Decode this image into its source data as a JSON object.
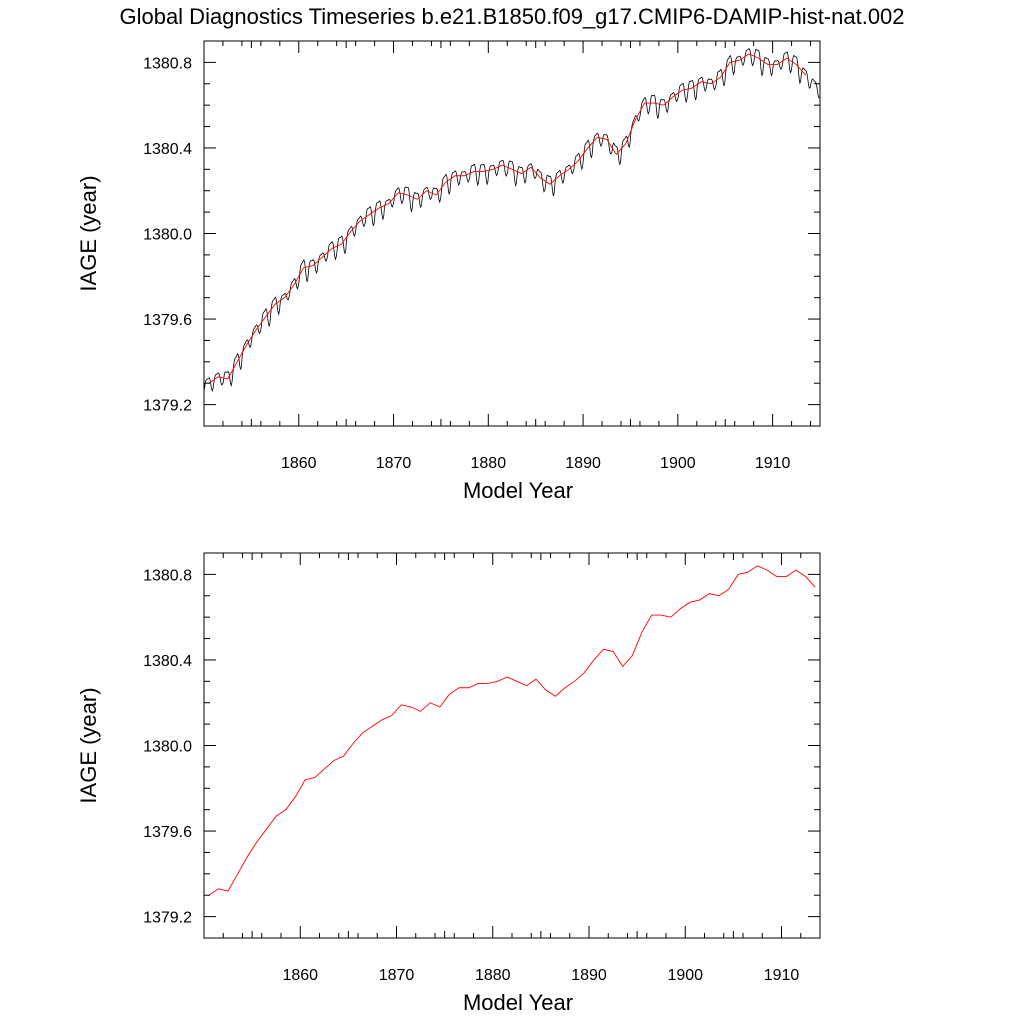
{
  "title": "Global Diagnostics Timeseries b.e21.B1850.f09_g17.CMIP6-DAMIP-hist-nat.002",
  "chart_data": [
    {
      "type": "line",
      "xlabel": "Model Year",
      "ylabel": "IAGE (year)",
      "xlim": [
        1850,
        1915
      ],
      "ylim": [
        1379.1,
        1380.9
      ],
      "xticks": [
        1860,
        1870,
        1880,
        1890,
        1900,
        1910
      ],
      "xtick_labels": [
        "1860",
        "1870",
        "1880",
        "1890",
        "1900",
        "1910"
      ],
      "yticks": [
        1379.2,
        1379.6,
        1380.0,
        1380.4,
        1380.8
      ],
      "ytick_labels": [
        "1379.2",
        "1379.6",
        "1380.0",
        "1380.4",
        "1380.8"
      ],
      "grid": false,
      "series": [
        {
          "color": "#000000",
          "kind": "monthly",
          "seasonal_amplitude": 0.045,
          "annual_anchor": "annual"
        },
        {
          "color": "#ff0000",
          "kind": "annual",
          "x": [
            1850.5,
            1851.5,
            1852.5,
            1853.5,
            1854.5,
            1855.5,
            1856.5,
            1857.5,
            1858.5,
            1859.5,
            1860.5,
            1861.5,
            1862.5,
            1863.5,
            1864.5,
            1865.5,
            1866.5,
            1867.5,
            1868.5,
            1869.5,
            1870.5,
            1871.5,
            1872.5,
            1873.5,
            1874.5,
            1875.5,
            1876.5,
            1877.5,
            1878.5,
            1879.5,
            1880.5,
            1881.5,
            1882.5,
            1883.5,
            1884.5,
            1885.5,
            1886.5,
            1887.5,
            1888.5,
            1889.5,
            1890.5,
            1891.5,
            1892.5,
            1893.5,
            1894.5,
            1895.5,
            1896.5,
            1897.5,
            1898.5,
            1899.5,
            1900.5,
            1901.5,
            1902.5,
            1903.5,
            1904.5,
            1905.5,
            1906.5,
            1907.5,
            1908.5,
            1909.5,
            1910.5,
            1911.5,
            1912.5,
            1913.5
          ],
          "values": [
            1379.3,
            1379.33,
            1379.32,
            1379.4,
            1379.48,
            1379.55,
            1379.61,
            1379.67,
            1379.7,
            1379.76,
            1379.84,
            1379.85,
            1379.89,
            1379.93,
            1379.95,
            1380.01,
            1380.06,
            1380.09,
            1380.12,
            1380.14,
            1380.19,
            1380.18,
            1380.16,
            1380.2,
            1380.18,
            1380.24,
            1380.27,
            1380.27,
            1380.29,
            1380.29,
            1380.3,
            1380.32,
            1380.3,
            1380.28,
            1380.31,
            1380.26,
            1380.23,
            1380.27,
            1380.3,
            1380.34,
            1380.4,
            1380.45,
            1380.44,
            1380.37,
            1380.42,
            1380.53,
            1380.61,
            1380.61,
            1380.6,
            1380.64,
            1380.67,
            1380.68,
            1380.71,
            1380.7,
            1380.73,
            1380.8,
            1380.81,
            1380.84,
            1380.82,
            1380.79,
            1380.79,
            1380.82,
            1380.79,
            1380.74
          ]
        }
      ]
    },
    {
      "type": "line",
      "xlabel": "Model Year",
      "ylabel": "IAGE (year)",
      "xlim": [
        1850,
        1914
      ],
      "ylim": [
        1379.1,
        1380.9
      ],
      "xticks": [
        1860,
        1870,
        1880,
        1890,
        1900,
        1910
      ],
      "xtick_labels": [
        "1860",
        "1870",
        "1880",
        "1890",
        "1900",
        "1910"
      ],
      "yticks": [
        1379.2,
        1379.6,
        1380.0,
        1380.4,
        1380.8
      ],
      "ytick_labels": [
        "1379.2",
        "1379.6",
        "1380.0",
        "1380.4",
        "1380.8"
      ],
      "grid": false,
      "series": [
        {
          "color": "#ff0000",
          "kind": "annual",
          "x": [
            1850.5,
            1851.5,
            1852.5,
            1853.5,
            1854.5,
            1855.5,
            1856.5,
            1857.5,
            1858.5,
            1859.5,
            1860.5,
            1861.5,
            1862.5,
            1863.5,
            1864.5,
            1865.5,
            1866.5,
            1867.5,
            1868.5,
            1869.5,
            1870.5,
            1871.5,
            1872.5,
            1873.5,
            1874.5,
            1875.5,
            1876.5,
            1877.5,
            1878.5,
            1879.5,
            1880.5,
            1881.5,
            1882.5,
            1883.5,
            1884.5,
            1885.5,
            1886.5,
            1887.5,
            1888.5,
            1889.5,
            1890.5,
            1891.5,
            1892.5,
            1893.5,
            1894.5,
            1895.5,
            1896.5,
            1897.5,
            1898.5,
            1899.5,
            1900.5,
            1901.5,
            1902.5,
            1903.5,
            1904.5,
            1905.5,
            1906.5,
            1907.5,
            1908.5,
            1909.5,
            1910.5,
            1911.5,
            1912.5,
            1913.5
          ],
          "values": [
            1379.3,
            1379.33,
            1379.32,
            1379.4,
            1379.48,
            1379.55,
            1379.61,
            1379.67,
            1379.7,
            1379.76,
            1379.84,
            1379.85,
            1379.89,
            1379.93,
            1379.95,
            1380.01,
            1380.06,
            1380.09,
            1380.12,
            1380.14,
            1380.19,
            1380.18,
            1380.16,
            1380.2,
            1380.18,
            1380.24,
            1380.27,
            1380.27,
            1380.29,
            1380.29,
            1380.3,
            1380.32,
            1380.3,
            1380.28,
            1380.31,
            1380.26,
            1380.23,
            1380.27,
            1380.3,
            1380.34,
            1380.4,
            1380.45,
            1380.44,
            1380.37,
            1380.42,
            1380.53,
            1380.61,
            1380.61,
            1380.6,
            1380.64,
            1380.67,
            1380.68,
            1380.71,
            1380.7,
            1380.73,
            1380.8,
            1380.81,
            1380.84,
            1380.82,
            1380.79,
            1380.79,
            1380.82,
            1380.79,
            1380.74
          ]
        }
      ]
    }
  ]
}
